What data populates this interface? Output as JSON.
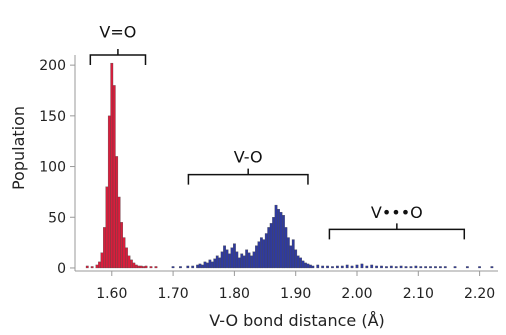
{
  "chart_data": {
    "type": "bar",
    "xlabel": "V-O bond distance (Å)",
    "ylabel": "Population",
    "xlim": [
      1.54,
      2.23
    ],
    "ylim": [
      -3,
      210
    ],
    "xticks": [
      {
        "value": 1.6,
        "label": "1.60"
      },
      {
        "value": 1.7,
        "label": "1.70"
      },
      {
        "value": 1.8,
        "label": "1.80"
      },
      {
        "value": 1.9,
        "label": "1.90"
      },
      {
        "value": 2.0,
        "label": "2.00"
      },
      {
        "value": 2.1,
        "label": "2.10"
      },
      {
        "value": 2.2,
        "label": "2.20"
      }
    ],
    "yticks": [
      {
        "value": 0,
        "label": "0"
      },
      {
        "value": 50,
        "label": "50"
      },
      {
        "value": 100,
        "label": "100"
      },
      {
        "value": 150,
        "label": "150"
      },
      {
        "value": 200,
        "label": "200"
      }
    ],
    "bin_width": 0.004,
    "series": [
      {
        "color": "#d81e3c",
        "x": [
          1.56,
          1.568,
          1.576,
          1.58,
          1.584,
          1.588,
          1.592,
          1.596,
          1.6,
          1.604,
          1.608,
          1.612,
          1.616,
          1.62,
          1.624,
          1.628,
          1.632,
          1.636,
          1.64,
          1.644,
          1.648,
          1.652,
          1.656,
          1.664,
          1.672
        ],
        "values": [
          2,
          1,
          3,
          6,
          15,
          40,
          80,
          150,
          202,
          180,
          110,
          70,
          45,
          30,
          20,
          12,
          8,
          5,
          3,
          2,
          2,
          1,
          2,
          1,
          1
        ]
      },
      {
        "color": "#2f3a9e",
        "x": [
          1.7,
          1.712,
          1.724,
          1.732,
          1.74,
          1.744,
          1.748,
          1.752,
          1.756,
          1.76,
          1.764,
          1.768,
          1.772,
          1.776,
          1.78,
          1.784,
          1.788,
          1.792,
          1.796,
          1.8,
          1.804,
          1.808,
          1.812,
          1.816,
          1.82,
          1.824,
          1.828,
          1.832,
          1.836,
          1.84,
          1.844,
          1.848,
          1.852,
          1.856,
          1.86,
          1.864,
          1.868,
          1.872,
          1.876,
          1.88,
          1.884,
          1.888,
          1.892,
          1.896,
          1.9,
          1.904,
          1.908,
          1.912,
          1.916,
          1.92,
          1.924,
          1.928,
          1.936,
          1.944,
          1.952,
          1.96,
          1.968,
          1.976,
          1.984,
          1.992,
          2.0,
          2.008,
          2.016,
          2.024,
          2.032,
          2.04,
          2.048,
          2.056,
          2.064,
          2.072,
          2.08,
          2.088,
          2.096,
          2.104,
          2.112,
          2.12,
          2.128,
          2.136,
          2.144,
          2.16,
          2.18,
          2.2,
          2.22
        ],
        "values": [
          1,
          1,
          2,
          2,
          3,
          4,
          3,
          6,
          5,
          8,
          6,
          9,
          12,
          10,
          16,
          22,
          18,
          14,
          20,
          24,
          16,
          10,
          14,
          12,
          18,
          15,
          12,
          16,
          22,
          26,
          30,
          28,
          34,
          40,
          44,
          50,
          62,
          58,
          55,
          52,
          40,
          30,
          22,
          28,
          18,
          12,
          10,
          7,
          5,
          4,
          3,
          2,
          3,
          2,
          2,
          1,
          2,
          2,
          3,
          2,
          3,
          4,
          2,
          3,
          2,
          2,
          1,
          2,
          1,
          2,
          1,
          1,
          2,
          1,
          1,
          1,
          1,
          1,
          1,
          1,
          1,
          1,
          1
        ]
      }
    ],
    "annotations": [
      {
        "label": "V=O",
        "from": 1.565,
        "to": 1.655,
        "y": 210,
        "label_y": 233
      },
      {
        "label": "V-O",
        "from": 1.725,
        "to": 1.92,
        "y": 92,
        "label_y": 110
      },
      {
        "label": "V•••O",
        "from": 1.955,
        "to": 2.175,
        "y": 38,
        "label_y": 55
      }
    ]
  }
}
